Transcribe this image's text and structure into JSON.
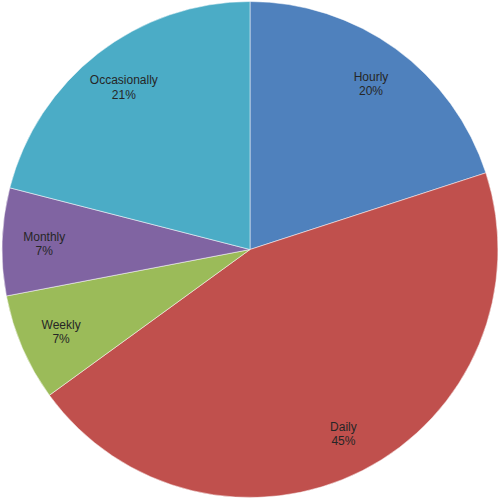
{
  "chart_data": {
    "type": "pie",
    "categories": [
      "Hourly",
      "Daily",
      "Weekly",
      "Monthly",
      "Occasionally"
    ],
    "values": [
      20,
      45,
      7,
      7,
      21
    ],
    "value_labels": [
      "20%",
      "45%",
      "7%",
      "7%",
      "21%"
    ],
    "colors": [
      "#4f81bd",
      "#c0504d",
      "#9bbb59",
      "#8064a2",
      "#4bacc6"
    ],
    "data_labels": true
  }
}
